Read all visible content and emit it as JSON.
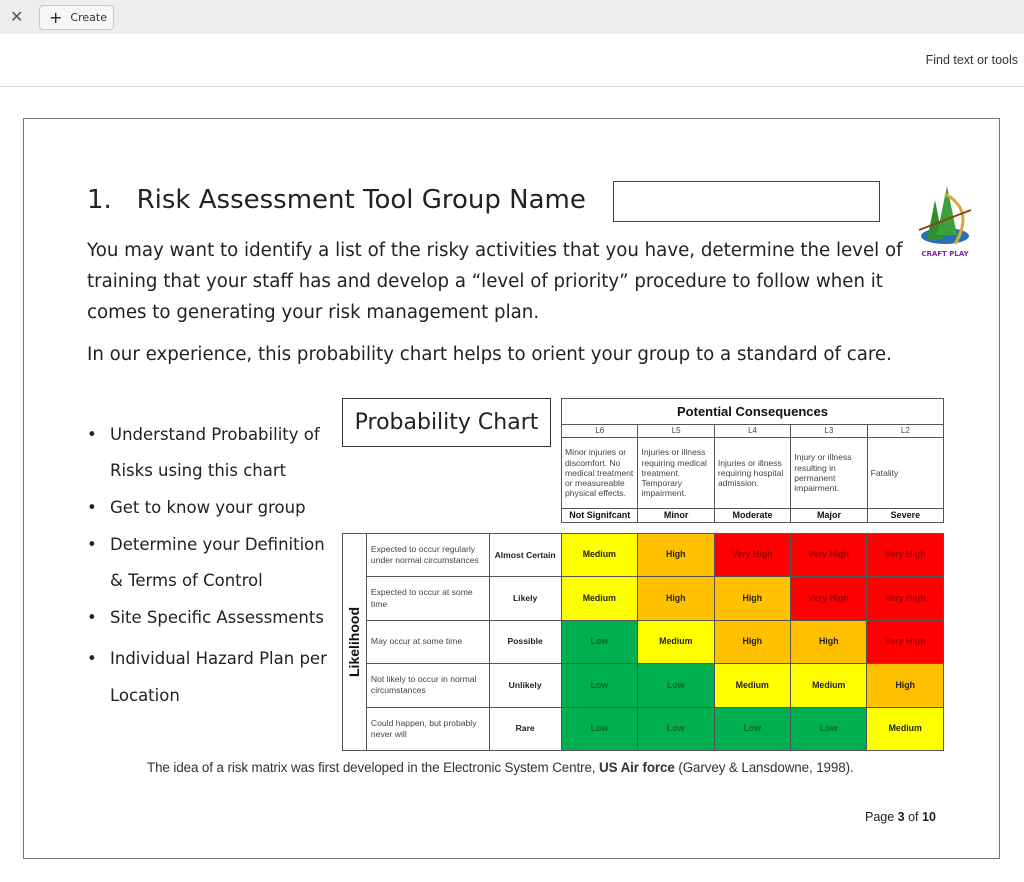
{
  "toolbar": {
    "close_icon": "close-icon",
    "create_label": "Create",
    "find_label": "Find text or tools"
  },
  "doc": {
    "title": "1.   Risk Assessment Tool Group Name",
    "group_name_value": "",
    "logo_text": "CRAFT PLAY",
    "para1": "You may want to identify a list of the risky activities that you have, determine the level of training that your staff has and develop a “level of priority” procedure to follow when it comes to generating your risk management plan.",
    "para2": "In our experience, this probability chart helps to orient your group to a standard of care.",
    "bullets": [
      {
        "lines": [
          "Understand Probability of",
          "Risks using this chart"
        ]
      },
      {
        "lines": [
          "Get to know your group"
        ]
      },
      {
        "lines": [
          "Determine your Definition",
          "& Terms of Control"
        ]
      },
      {
        "lines": [
          "Site Specific Assessments"
        ]
      },
      {
        "lines": [
          "Individual Hazard Plan per",
          "Location"
        ]
      }
    ],
    "chart_title": "Probability Chart",
    "consequences": {
      "header": "Potential Consequences",
      "levels": [
        "L6",
        "L5",
        "L4",
        "L3",
        "L2"
      ],
      "descriptions": [
        "Minor injuries or discomfort. No medical treatment or measureable physical effects.",
        "Injuries or illness requiring medical treatment. Temporary impairment.",
        "Injuries or illness requiring hospital admission.",
        "Injury or illness resulting in permanent impairment.",
        "Fatality"
      ],
      "severity": [
        "Not Signifcant",
        "Minor",
        "Moderate",
        "Major",
        "Severe"
      ]
    },
    "likelihood_label": "Likelihood",
    "rows": [
      {
        "desc": "Expected to occur regularly under normal circumstances",
        "level": "Almost Certain",
        "cells": [
          "Medium",
          "High",
          "Very High",
          "Very High",
          "Very High"
        ]
      },
      {
        "desc": "Expected to occur at some time",
        "level": "Likely",
        "cells": [
          "Medium",
          "High",
          "High",
          "Very High",
          "Very High"
        ]
      },
      {
        "desc": "May occur at some time",
        "level": "Possible",
        "cells": [
          "Low",
          "Medium",
          "High",
          "High",
          "Very High"
        ]
      },
      {
        "desc": "Not likely to occur in normal circumstances",
        "level": "Unlikely",
        "cells": [
          "Low",
          "Low",
          "Medium",
          "Medium",
          "High"
        ]
      },
      {
        "desc": "Could happen, but probably never will",
        "level": "Rare",
        "cells": [
          "Low",
          "Low",
          "Low",
          "Low",
          "Medium"
        ]
      }
    ],
    "risk_colors": {
      "Low": "#00b050",
      "Medium": "#ffff00",
      "High": "#ffc000",
      "Very High": "#ff0000"
    },
    "risk_text_colors": {
      "Low": "#0a6a2a",
      "Medium": "#222222",
      "High": "#222222",
      "Very High": "#a00000"
    },
    "footnote_pre": "The idea of a risk matrix was first developed in the Electronic System Centre, ",
    "footnote_bold": "US Air force",
    "footnote_post": " (Garvey & Lansdowne, 1998).",
    "page_pre": "Page ",
    "page_current": "3",
    "page_of": " of ",
    "page_total": "10"
  }
}
